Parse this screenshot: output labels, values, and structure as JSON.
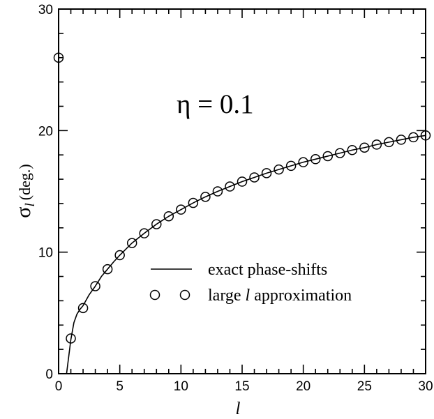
{
  "chart_data": {
    "type": "line",
    "annotation": "η = 0.1",
    "xlabel": "l",
    "ylabel_symbol": "σ",
    "ylabel_sub": "l",
    "ylabel_unit": "(deg.)",
    "xlim": [
      0,
      30
    ],
    "ylim": [
      0,
      30
    ],
    "x_ticks": [
      0,
      5,
      10,
      15,
      20,
      25,
      30
    ],
    "y_ticks": [
      0,
      10,
      20,
      30
    ],
    "x_tick_labels": [
      "0",
      "5",
      "10",
      "15",
      "20",
      "25",
      "30"
    ],
    "y_tick_labels": [
      "0",
      "10",
      "20",
      "30"
    ],
    "grid": false,
    "legend_position": "bottom-right",
    "legend": {
      "line_label": "exact phase-shifts",
      "markers_label_pre": "large",
      "markers_label_var": "l",
      "markers_label_post": "approximation"
    },
    "series": [
      {
        "kind": "line",
        "x": [
          0.65,
          0.8,
          1,
          1.25,
          1.5,
          1.75,
          2,
          2.5,
          3,
          3.5,
          4,
          4.5,
          5,
          6,
          7,
          8,
          9,
          10,
          11,
          12,
          13,
          14,
          15,
          16,
          17,
          18,
          19,
          20,
          21,
          22,
          23,
          24,
          25,
          26,
          27,
          28,
          29,
          30
        ],
        "y": [
          0,
          1.2,
          2.8,
          4.2,
          4.9,
          5.3,
          5.6,
          6.5,
          7.2,
          8.0,
          8.6,
          9.2,
          9.75,
          10.75,
          11.55,
          12.3,
          12.95,
          13.5,
          14.05,
          14.55,
          15.0,
          15.4,
          15.8,
          16.15,
          16.5,
          16.8,
          17.1,
          17.4,
          17.65,
          17.9,
          18.15,
          18.4,
          18.6,
          18.85,
          19.05,
          19.25,
          19.45,
          19.6
        ]
      },
      {
        "kind": "markers",
        "x": [
          0,
          1,
          2,
          3,
          4,
          5,
          6,
          7,
          8,
          9,
          10,
          11,
          12,
          13,
          14,
          15,
          16,
          17,
          18,
          19,
          20,
          21,
          22,
          23,
          24,
          25,
          26,
          27,
          28,
          29,
          30
        ],
        "y": [
          26.0,
          2.9,
          5.4,
          7.2,
          8.6,
          9.75,
          10.75,
          11.55,
          12.3,
          12.95,
          13.5,
          14.05,
          14.55,
          15.0,
          15.4,
          15.8,
          16.15,
          16.5,
          16.8,
          17.1,
          17.4,
          17.65,
          17.9,
          18.15,
          18.4,
          18.6,
          18.85,
          19.05,
          19.25,
          19.45,
          19.6
        ]
      }
    ]
  }
}
